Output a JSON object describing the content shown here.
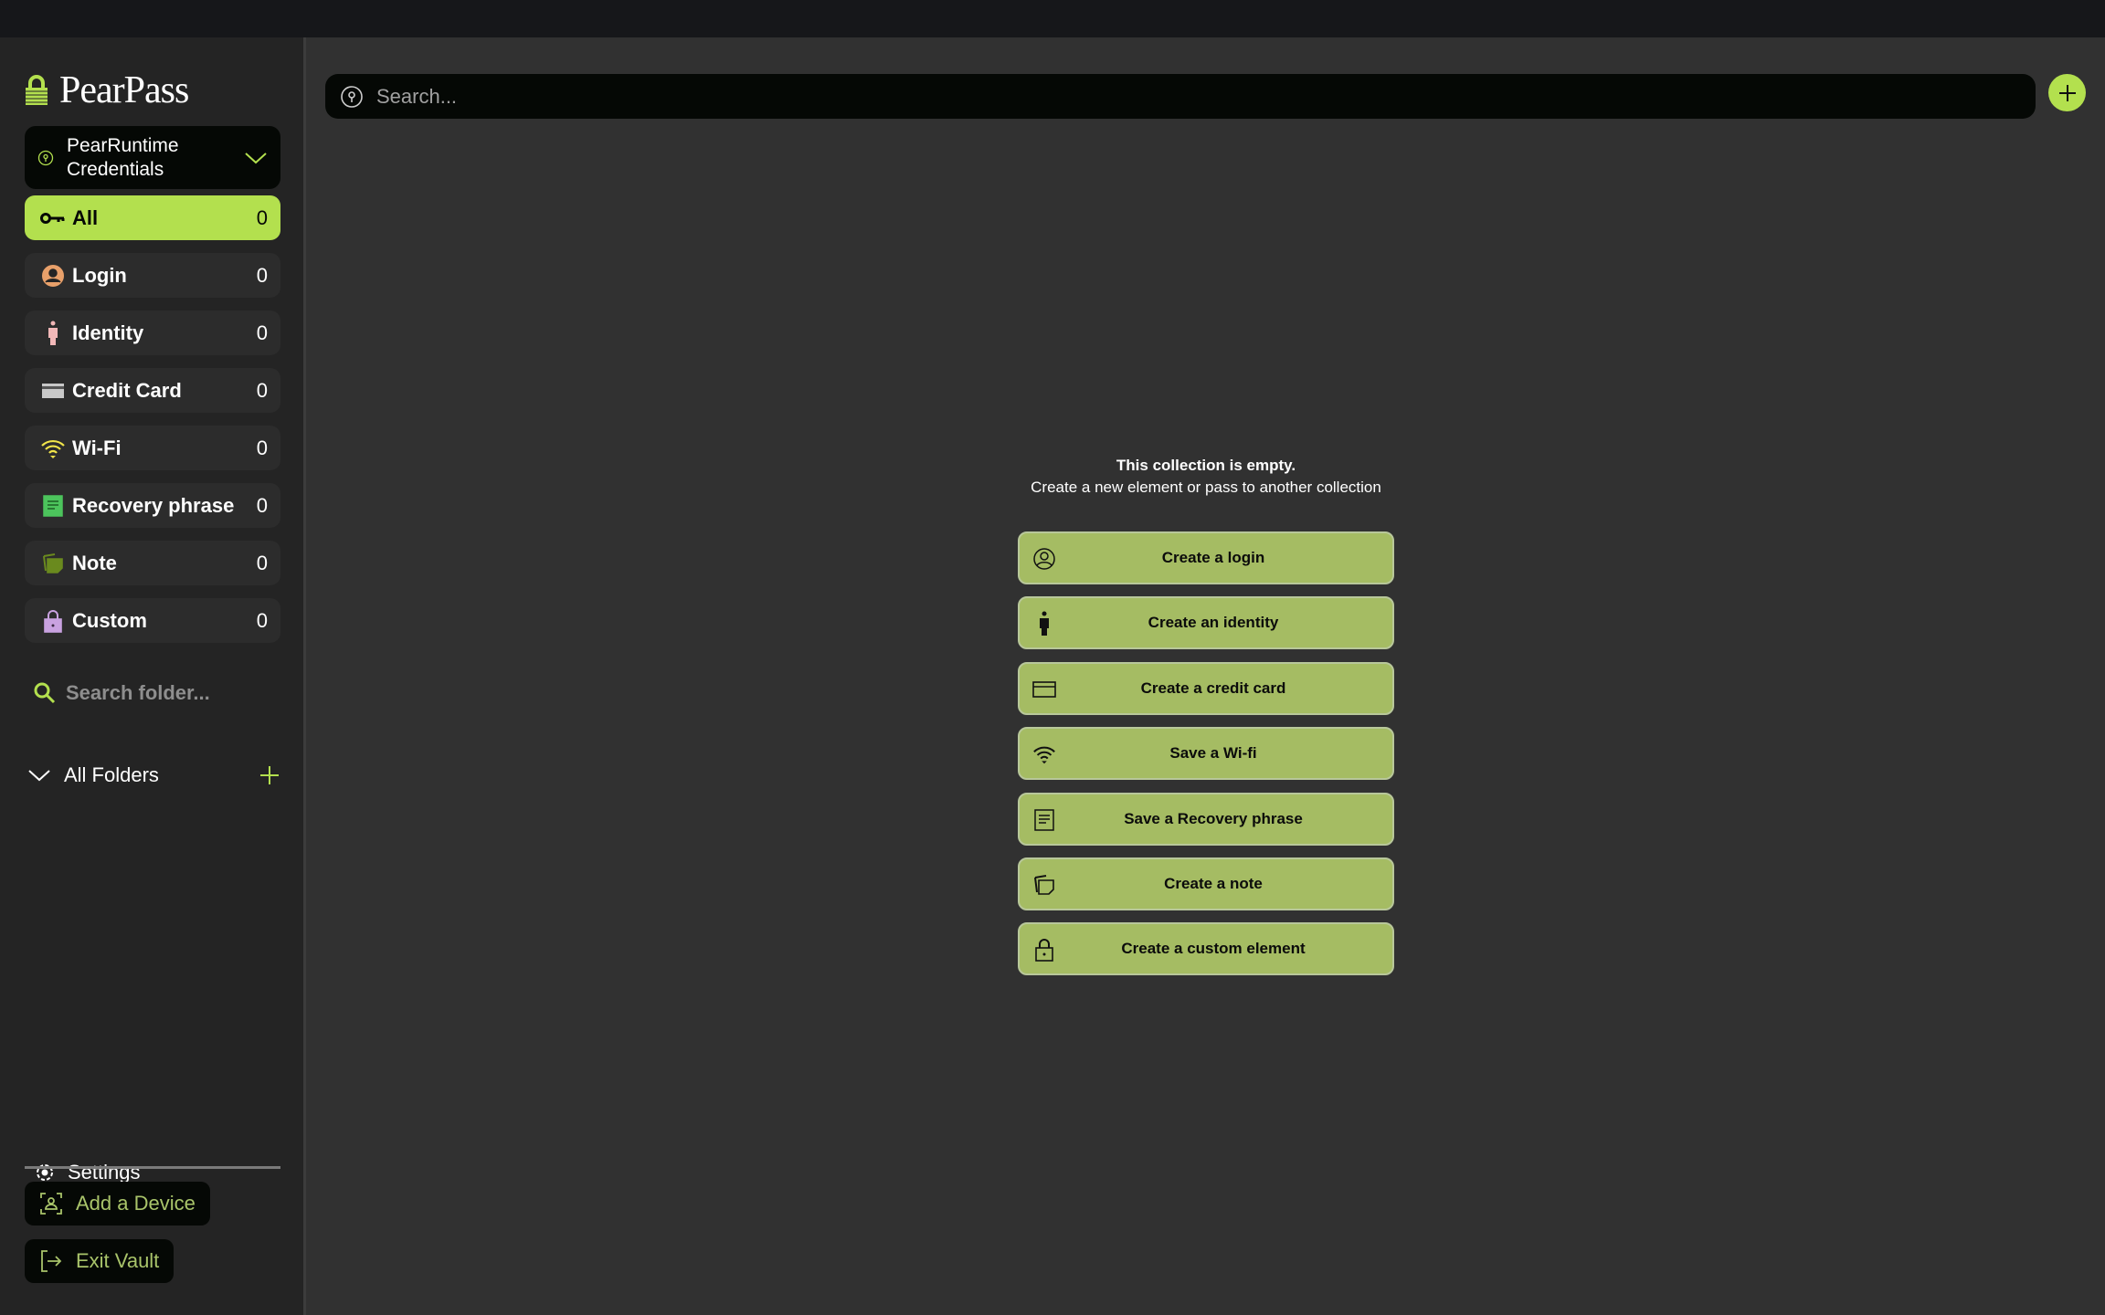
{
  "app": {
    "name": "PearPass"
  },
  "vault": {
    "name": "PearRuntime Credentials"
  },
  "categories": [
    {
      "label": "All",
      "count": "0",
      "icon": "key-icon",
      "active": true
    },
    {
      "label": "Login",
      "count": "0",
      "icon": "user-circle-icon"
    },
    {
      "label": "Identity",
      "count": "0",
      "icon": "person-icon"
    },
    {
      "label": "Credit Card",
      "count": "0",
      "icon": "credit-card-icon"
    },
    {
      "label": "Wi-Fi",
      "count": "0",
      "icon": "wifi-icon"
    },
    {
      "label": "Recovery phrase",
      "count": "0",
      "icon": "document-icon"
    },
    {
      "label": "Note",
      "count": "0",
      "icon": "note-icon"
    },
    {
      "label": "Custom",
      "count": "0",
      "icon": "lock-icon"
    }
  ],
  "folders": {
    "search_placeholder": "Search folder...",
    "all_label": "All Folders"
  },
  "sidebar_bottom": {
    "settings": "Settings",
    "add_device": "Add a Device",
    "exit_vault": "Exit Vault"
  },
  "search": {
    "placeholder": "Search..."
  },
  "empty": {
    "title": "This collection is empty.",
    "subtitle": "Create a new element or pass to another collection"
  },
  "actions": [
    {
      "label": "Create a login",
      "icon": "user-circle-icon"
    },
    {
      "label": "Create an identity",
      "icon": "person-icon"
    },
    {
      "label": "Create a credit card",
      "icon": "credit-card-icon"
    },
    {
      "label": "Save a Wi-fi",
      "icon": "wifi-icon"
    },
    {
      "label": "Save a Recovery phrase",
      "icon": "document-icon"
    },
    {
      "label": "Create a note",
      "icon": "note-icon"
    },
    {
      "label": "Create a custom element",
      "icon": "lock-icon"
    }
  ],
  "colors": {
    "accent": "#b3e04e",
    "action_button": "#a5bc63",
    "sidebar": "#242424",
    "main": "#313131"
  }
}
